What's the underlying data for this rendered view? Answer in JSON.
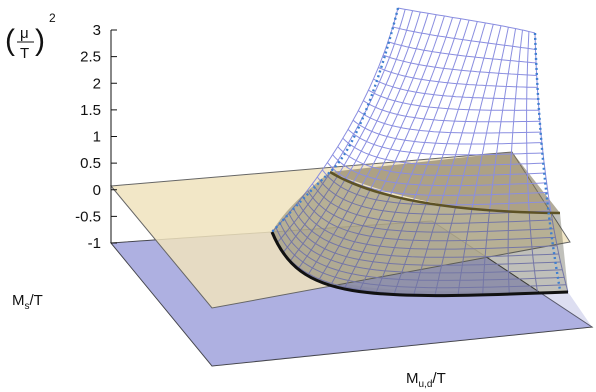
{
  "chart_data": {
    "type": "surface",
    "zlabel": {
      "lhs": "(",
      "num": "μ",
      "den": "T",
      "rhs": ")",
      "power": "2"
    },
    "xlabel": {
      "main": "M",
      "sub": "u,d",
      "suffix": "/T"
    },
    "ylabel": {
      "main": "M",
      "sub": "s",
      "suffix": "/T"
    },
    "zlim": [
      -1,
      3
    ],
    "z_ticks": [
      "3",
      "2.5",
      "2",
      "1.5",
      "1",
      "0.5",
      "0",
      "-0.5",
      "-1"
    ],
    "planes": [
      {
        "name": "zero-plane",
        "z": 0,
        "color": "#f2e7c4"
      },
      {
        "name": "base-plane",
        "z": -1,
        "color": "#b7b9e6"
      }
    ],
    "surface_color": "#8a8ee0",
    "boundary_color": "#5a8fd0",
    "contour_color": "#222222"
  }
}
